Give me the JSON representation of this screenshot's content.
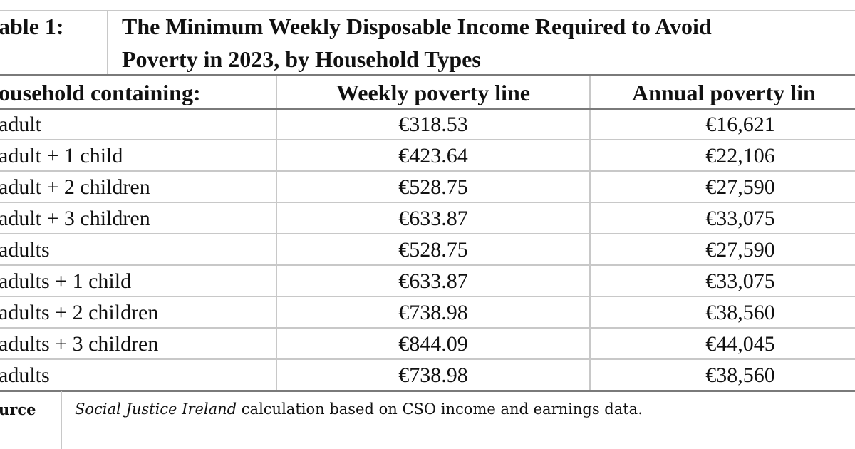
{
  "table": {
    "label": "able 1:",
    "title_line1": "The Minimum Weekly Disposable Income Required to Avoid",
    "title_line2": "Poverty in 2023, by Household Types",
    "headers": [
      "ousehold containing:",
      "Weekly poverty line",
      "Annual poverty lin"
    ],
    "rows": [
      {
        "household": "adult",
        "weekly": "€318.53",
        "annual": "€16,621"
      },
      {
        "household": "adult + 1 child",
        "weekly": "€423.64",
        "annual": "€22,106"
      },
      {
        "household": "adult + 2 children",
        "weekly": "€528.75",
        "annual": "€27,590"
      },
      {
        "household": "adult + 3 children",
        "weekly": "€633.87",
        "annual": "€33,075"
      },
      {
        "household": "adults",
        "weekly": "€528.75",
        "annual": "€27,590"
      },
      {
        "household": "adults + 1 child",
        "weekly": "€633.87",
        "annual": "€33,075"
      },
      {
        "household": "adults + 2 children",
        "weekly": "€738.98",
        "annual": "€38,560"
      },
      {
        "household": "adults + 3 children",
        "weekly": "€844.09",
        "annual": "€44,045"
      },
      {
        "household": "adults",
        "weekly": "€738.98",
        "annual": "€38,560"
      }
    ],
    "source_label": "urce",
    "source_italic": "Social Justice Ireland",
    "source_text": " calculation based on CSO income and earnings data."
  }
}
